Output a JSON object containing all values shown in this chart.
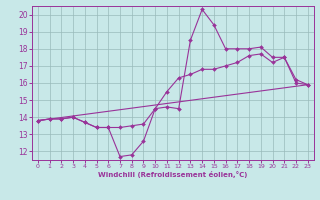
{
  "xlabel": "Windchill (Refroidissement éolien,°C)",
  "xlim": [
    -0.5,
    23.5
  ],
  "ylim": [
    11.5,
    20.5
  ],
  "yticks": [
    12,
    13,
    14,
    15,
    16,
    17,
    18,
    19,
    20
  ],
  "xticks": [
    0,
    1,
    2,
    3,
    4,
    5,
    6,
    7,
    8,
    9,
    10,
    11,
    12,
    13,
    14,
    15,
    16,
    17,
    18,
    19,
    20,
    21,
    22,
    23
  ],
  "bg_color": "#c8e8e8",
  "line_color": "#993399",
  "grid_color": "#99bbbb",
  "series": [
    {
      "x": [
        0,
        1,
        2,
        3,
        4,
        5,
        6,
        7,
        8,
        9,
        10,
        11,
        12,
        13,
        14,
        15,
        16,
        17,
        18,
        19,
        20,
        21,
        22,
        23
      ],
      "y": [
        13.8,
        13.9,
        13.9,
        14.0,
        13.7,
        13.4,
        13.4,
        11.7,
        11.8,
        12.6,
        14.5,
        14.6,
        14.5,
        18.5,
        20.3,
        19.4,
        18.0,
        18.0,
        18.0,
        18.1,
        17.5,
        17.5,
        16.0,
        15.9
      ]
    },
    {
      "x": [
        0,
        1,
        2,
        3,
        4,
        5,
        6,
        7,
        8,
        9,
        10,
        11,
        12,
        13,
        14,
        15,
        16,
        17,
        18,
        19,
        20,
        21,
        22,
        23
      ],
      "y": [
        13.8,
        13.9,
        13.9,
        14.0,
        13.7,
        13.4,
        13.4,
        13.4,
        13.5,
        13.6,
        14.5,
        15.5,
        16.3,
        16.5,
        16.8,
        16.8,
        17.0,
        17.2,
        17.6,
        17.7,
        17.2,
        17.5,
        16.2,
        15.9
      ]
    },
    {
      "x": [
        0,
        23
      ],
      "y": [
        13.8,
        15.9
      ],
      "no_markers": true
    }
  ]
}
